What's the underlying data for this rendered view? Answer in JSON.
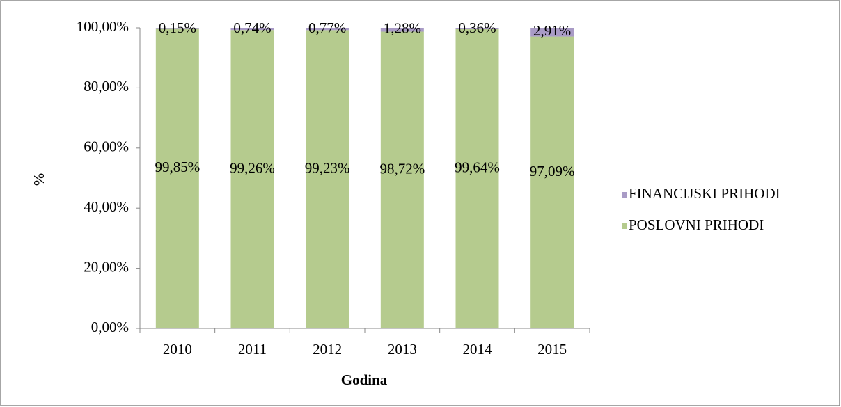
{
  "chart_data": {
    "type": "stacked_bar",
    "x_label": "Godina",
    "y_label": "%",
    "categories": [
      "2010",
      "2011",
      "2012",
      "2013",
      "2014",
      "2015"
    ],
    "series": [
      {
        "name": "POSLOVNI PRIHODI",
        "color": "#b5cb8e",
        "values": [
          99.85,
          99.26,
          99.23,
          98.72,
          99.64,
          97.09
        ],
        "value_labels": [
          "99,85%",
          "99,26%",
          "99,23%",
          "98,72%",
          "99,64%",
          "97,09%"
        ]
      },
      {
        "name": "FINANCIJSKI PRIHODI",
        "color": "#a99bc6",
        "values": [
          0.15,
          0.74,
          0.77,
          1.28,
          0.36,
          2.91
        ],
        "value_labels": [
          "0,15%",
          "0,74%",
          "0,77%",
          "1,28%",
          "0,36%",
          "2,91%"
        ]
      }
    ],
    "ylim": [
      0,
      100
    ],
    "yticks": [
      {
        "value": 0,
        "label": "0,00%"
      },
      {
        "value": 20,
        "label": "20,00%"
      },
      {
        "value": 40,
        "label": "40,00%"
      },
      {
        "value": 60,
        "label": "60,00%"
      },
      {
        "value": 80,
        "label": "80,00%"
      },
      {
        "value": 100,
        "label": "100,00%"
      }
    ],
    "grid": false,
    "legend": "right"
  }
}
